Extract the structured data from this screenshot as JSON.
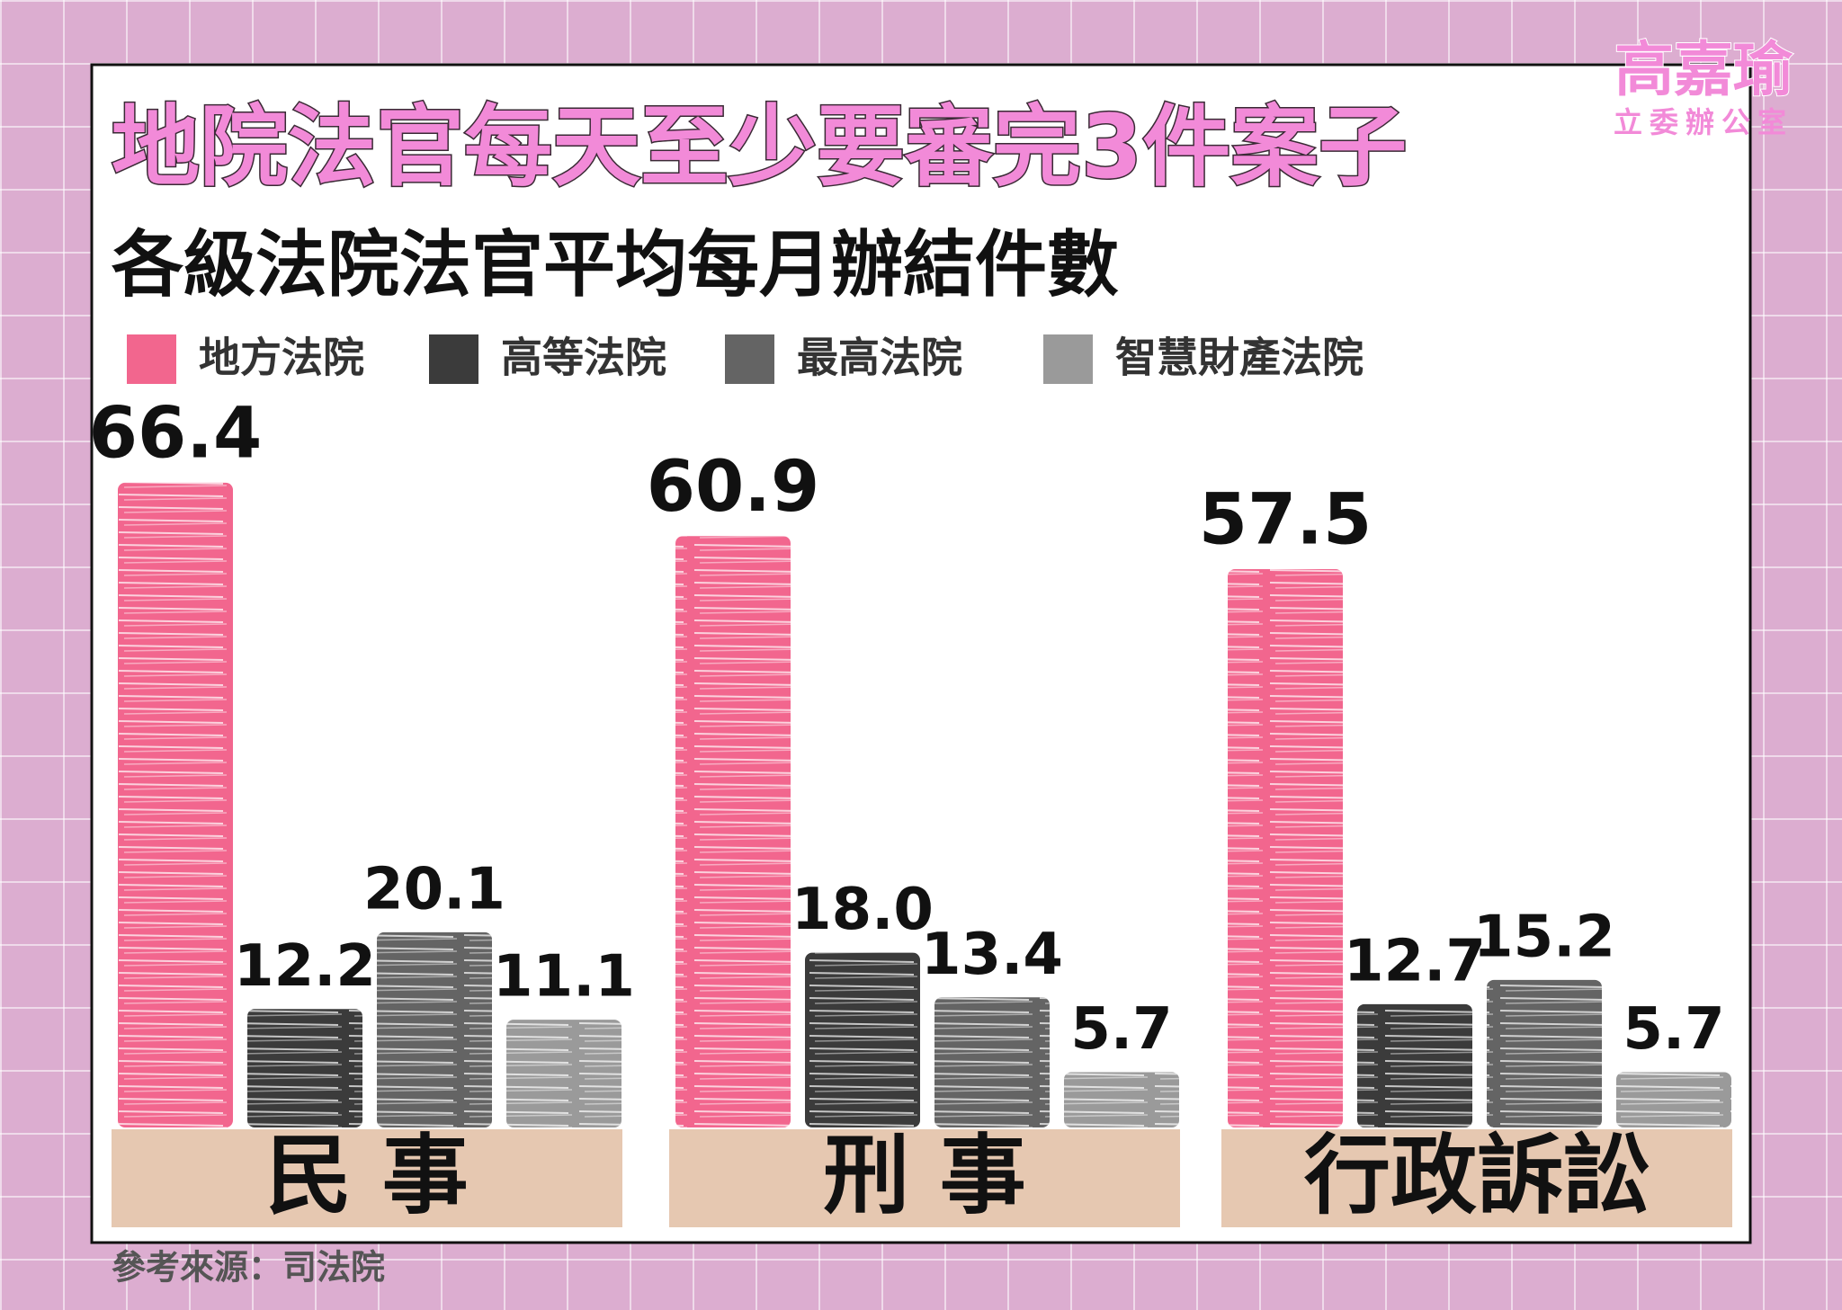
{
  "chart_data": {
    "type": "bar",
    "title": "地院法官每天至少要審完3件案子",
    "subtitle": "各級法院法官平均每月辦結件數",
    "source": "參考來源：司法院",
    "logo": {
      "name": "高嘉瑜",
      "office": "立委辦公室"
    },
    "categories": [
      "民 事",
      "刑 事",
      "行政訴訟"
    ],
    "series": [
      {
        "name": "地方法院",
        "color": "#f2668e",
        "values": [
          66.4,
          60.9,
          57.5
        ],
        "value_labels": [
          "66.4",
          "60.9",
          "57.5"
        ]
      },
      {
        "name": "高等法院",
        "color": "#3b3b3b",
        "values": [
          12.2,
          18.0,
          12.7
        ],
        "value_labels": [
          "12.2",
          "18.0",
          "12.7"
        ]
      },
      {
        "name": "最高法院",
        "color": "#646464",
        "values": [
          20.1,
          13.4,
          15.2
        ],
        "value_labels": [
          "20.1",
          "13.4",
          "15.2"
        ]
      },
      {
        "name": "智慧財產法院",
        "color": "#9a9a9a",
        "values": [
          11.1,
          5.7,
          5.7
        ],
        "value_labels": [
          "11.1",
          "5.7",
          "5.7"
        ]
      }
    ]
  }
}
